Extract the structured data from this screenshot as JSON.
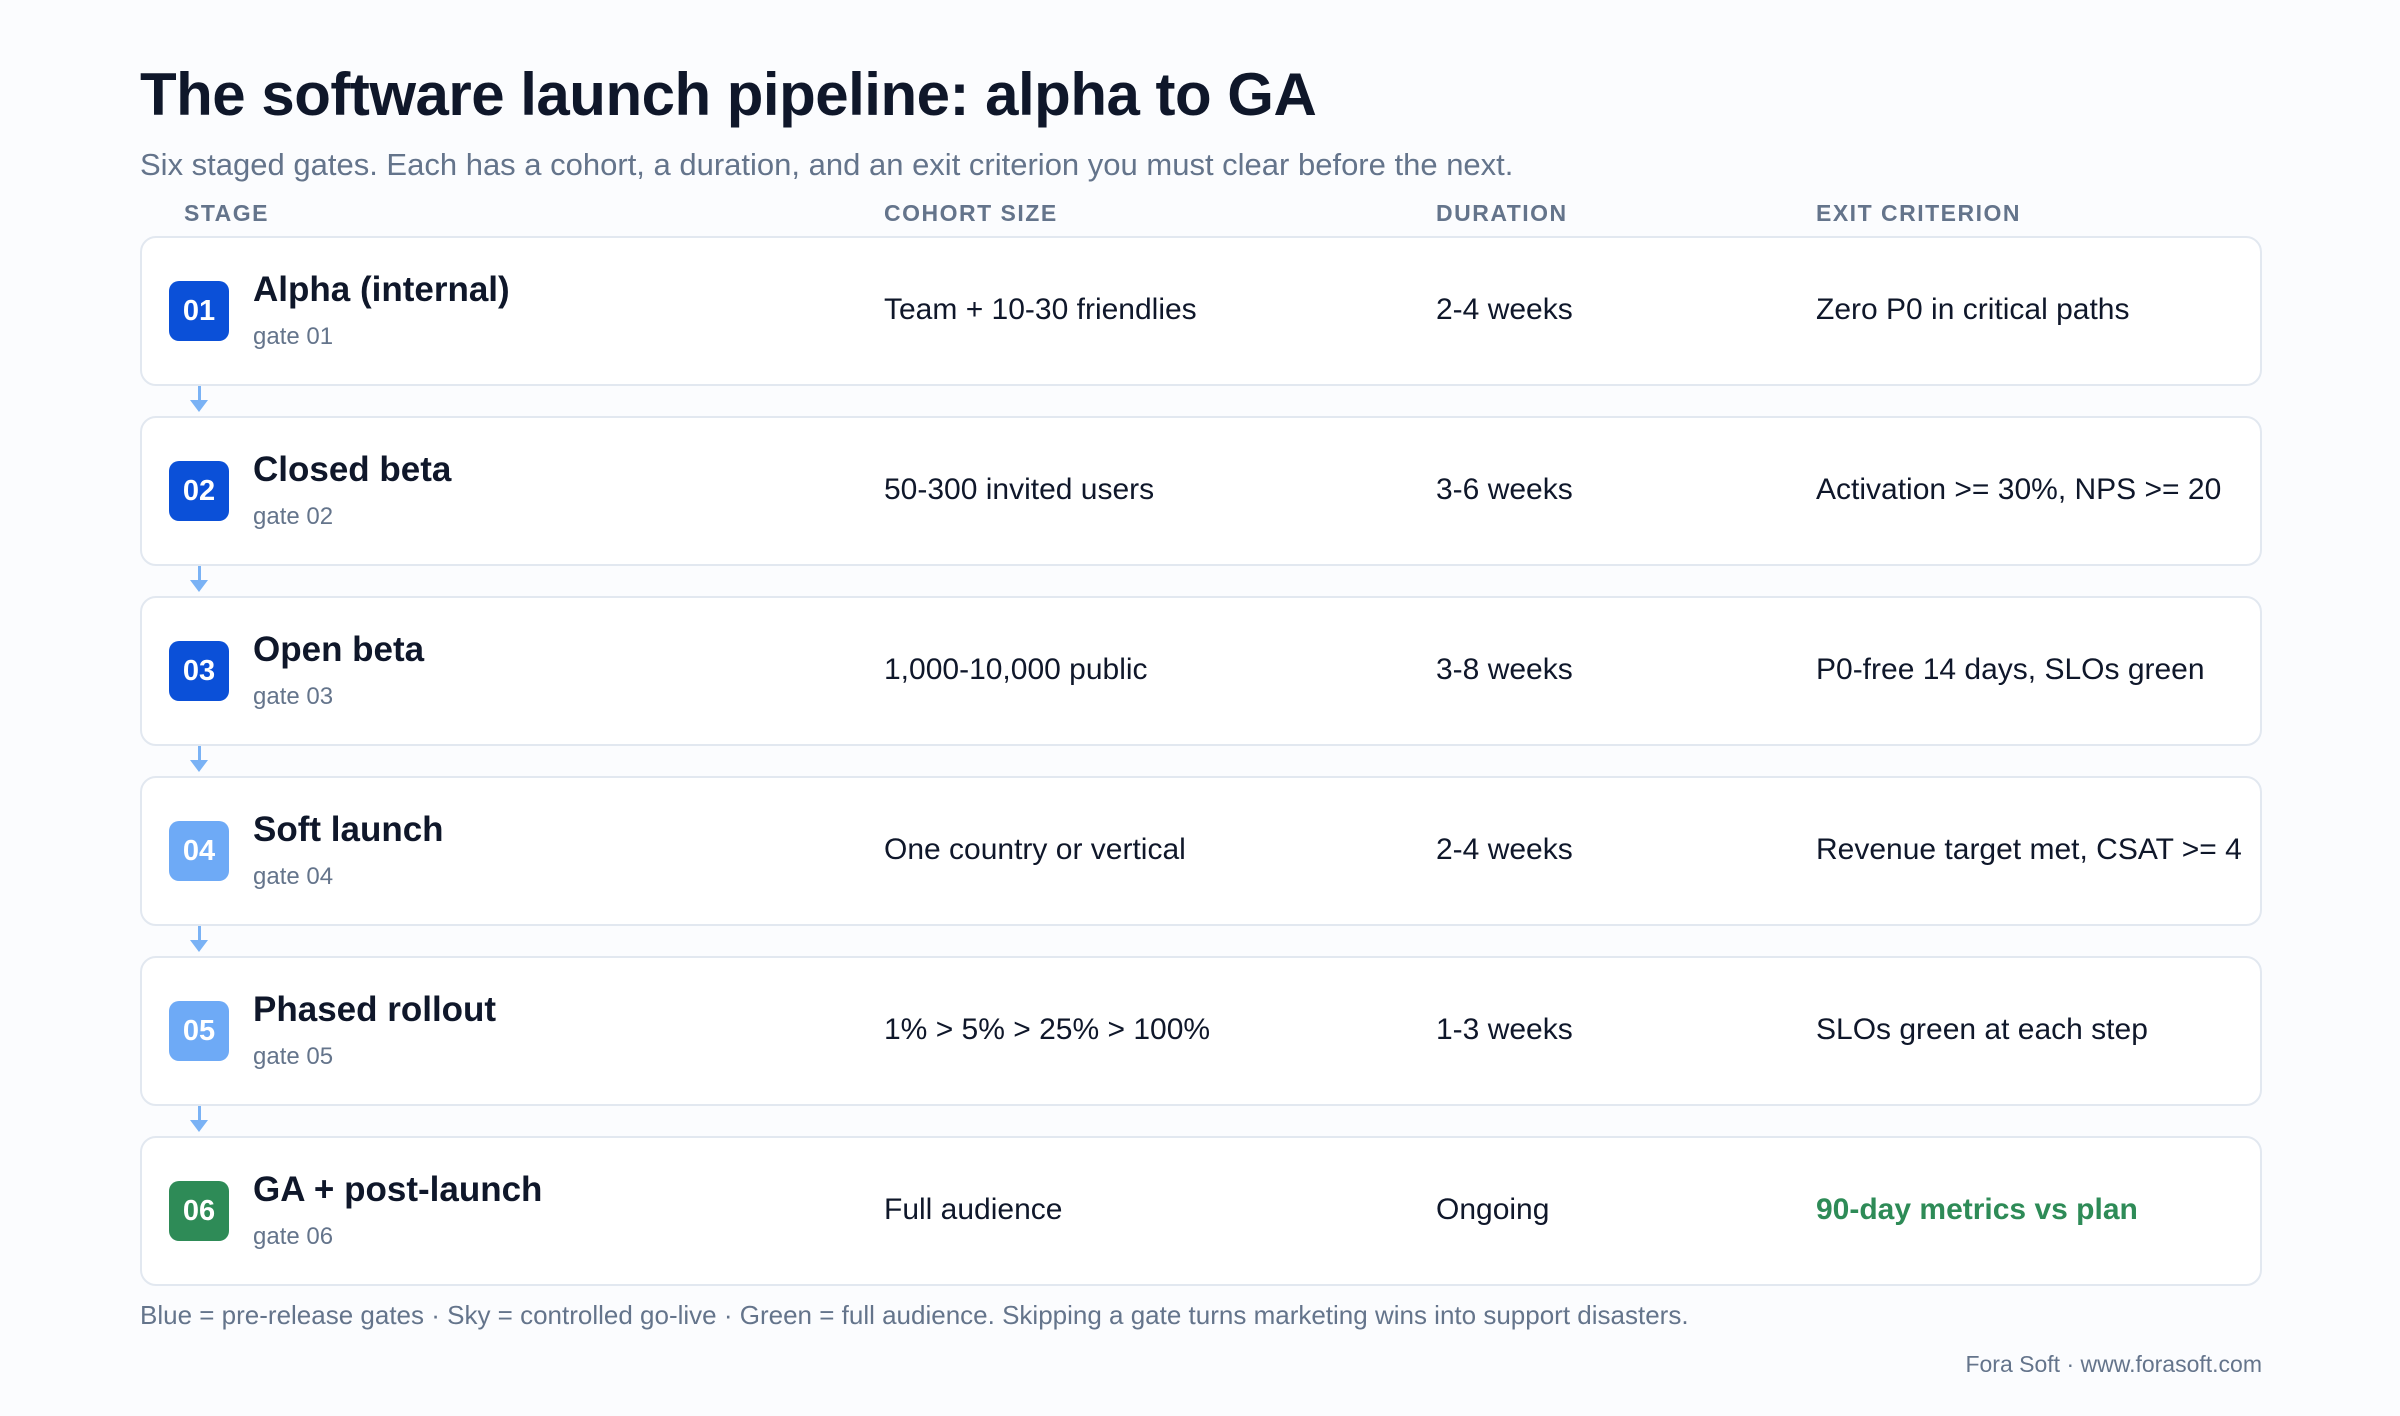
{
  "title": "The software launch pipeline: alpha to GA",
  "subtitle": "Six staged gates. Each has a cohort, a duration, and an exit criterion you must clear before the next.",
  "columns": {
    "stage": "STAGE",
    "cohort": "COHORT SIZE",
    "duration": "DURATION",
    "exit": "EXIT CRITERION"
  },
  "colors": {
    "blue": "#0b50d8",
    "sky": "#6eaaf6",
    "green": "#2e8b57",
    "arrow": "#7ab2f5",
    "green_text": "#2e8b57"
  },
  "stages": [
    {
      "num": "01",
      "name": "Alpha (internal)",
      "gate": "gate 01",
      "cohort": "Team + 10-30 friendlies",
      "duration": "2-4 weeks",
      "exit": "Zero P0 in critical paths",
      "group": "blue"
    },
    {
      "num": "02",
      "name": "Closed beta",
      "gate": "gate 02",
      "cohort": "50-300 invited users",
      "duration": "3-6 weeks",
      "exit": "Activation >= 30%, NPS >= 20",
      "group": "blue"
    },
    {
      "num": "03",
      "name": "Open beta",
      "gate": "gate 03",
      "cohort": "1,000-10,000 public",
      "duration": "3-8 weeks",
      "exit": "P0-free 14 days, SLOs green",
      "group": "blue"
    },
    {
      "num": "04",
      "name": "Soft launch",
      "gate": "gate 04",
      "cohort": "One country or vertical",
      "duration": "2-4 weeks",
      "exit": "Revenue target met, CSAT >= 4",
      "group": "sky"
    },
    {
      "num": "05",
      "name": "Phased rollout",
      "gate": "gate 05",
      "cohort": "1% > 5% > 25% > 100%",
      "duration": "1-3 weeks",
      "exit": "SLOs green at each step",
      "group": "sky"
    },
    {
      "num": "06",
      "name": "GA + post-launch",
      "gate": "gate 06",
      "cohort": "Full audience",
      "duration": "Ongoing",
      "exit": "90-day metrics vs plan",
      "group": "green"
    }
  ],
  "legend": "Blue = pre-release gates · Sky = controlled go-live · Green = full audience. Skipping a gate turns marketing wins into support disasters.",
  "footer": "Fora Soft · www.forasoft.com"
}
